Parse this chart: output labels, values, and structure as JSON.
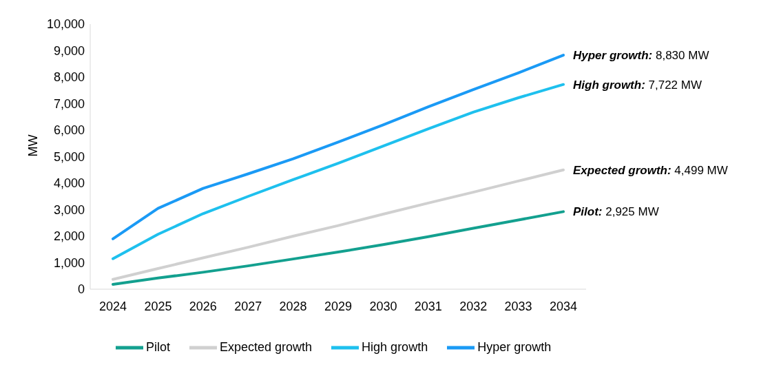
{
  "chart_data": {
    "type": "line",
    "ylabel": "MW",
    "categories": [
      "2024",
      "2025",
      "2026",
      "2027",
      "2028",
      "2029",
      "2030",
      "2031",
      "2032",
      "2033",
      "2034"
    ],
    "series": [
      {
        "name": "Pilot",
        "color": "#13a08f",
        "values": [
          180,
          420,
          640,
          880,
          1140,
          1400,
          1680,
          1980,
          2300,
          2610,
          2925
        ]
      },
      {
        "name": "Expected growth",
        "color": "#d0d0d0",
        "values": [
          370,
          780,
          1180,
          1580,
          2000,
          2400,
          2830,
          3250,
          3660,
          4080,
          4499
        ]
      },
      {
        "name": "High growth",
        "color": "#1ec0ee",
        "values": [
          1150,
          2070,
          2850,
          3500,
          4130,
          4750,
          5400,
          6050,
          6680,
          7220,
          7722
        ]
      },
      {
        "name": "Hyper growth",
        "color": "#1a9af5",
        "values": [
          1900,
          3050,
          3800,
          4350,
          4920,
          5550,
          6200,
          6880,
          7530,
          8160,
          8830
        ]
      }
    ],
    "ylim": [
      0,
      10000
    ],
    "yticks": [
      0,
      {
        "value": 1000,
        "label": "1,000"
      },
      {
        "value": 2000,
        "label": "2,000"
      },
      {
        "value": 3000,
        "label": "3,000"
      },
      {
        "value": 4000,
        "label": "4,000"
      },
      {
        "value": 5000,
        "label": "5,000"
      },
      {
        "value": 6000,
        "label": "6,000"
      },
      {
        "value": 7000,
        "label": "7,000"
      },
      {
        "value": 8000,
        "label": "8,000"
      },
      {
        "value": 9000,
        "label": "9,000"
      },
      {
        "value": 10000,
        "label": "10,000"
      }
    ],
    "annotations": [
      {
        "text": "Hyper growth: 8,830 MW",
        "x": "2034",
        "y": 8830
      },
      {
        "text": "High growth: 7,722 MW",
        "x": "2034",
        "y": 7722
      },
      {
        "text": "Expected growth: 4,499 MW",
        "x": "2034",
        "y": 4499
      },
      {
        "text": "Pilot: 2,925 MW",
        "x": "2034",
        "y": 2925
      }
    ],
    "grid": false,
    "legend": "bottom",
    "marker": "none",
    "line_style": "solid"
  }
}
